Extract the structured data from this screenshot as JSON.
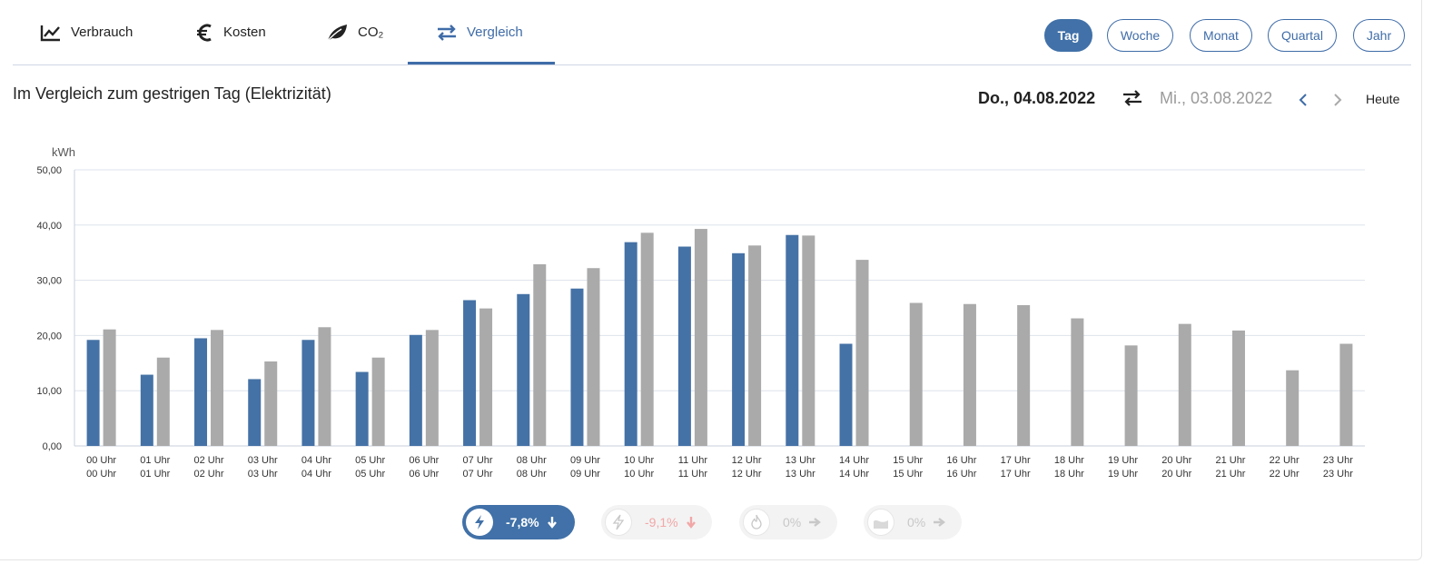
{
  "tabs": [
    {
      "label": "Verbrauch",
      "icon": "trend-chart-icon"
    },
    {
      "label": "Kosten",
      "icon": "euro-icon"
    },
    {
      "label": "CO₂",
      "icon": "leaf-icon"
    },
    {
      "label": "Vergleich",
      "icon": "swap-arrows-icon",
      "active": true
    }
  ],
  "periods": [
    {
      "label": "Tag",
      "active": true
    },
    {
      "label": "Woche"
    },
    {
      "label": "Monat"
    },
    {
      "label": "Quartal"
    },
    {
      "label": "Jahr"
    }
  ],
  "title": "Im Vergleich zum gestrigen Tag (Elektrizität)",
  "date_nav": {
    "current": "Do., 04.08.2022",
    "compare": "Mi., 03.08.2022",
    "today_label": "Heute"
  },
  "colors": {
    "accent": "#4171a8",
    "compare_bar": "#aaaaaa",
    "current_bar": "#4572a6",
    "negative": "#f2a7a7"
  },
  "chart_data": {
    "type": "bar",
    "ylabel": "kWh",
    "ylim": [
      0,
      50
    ],
    "yticks": [
      "0,00",
      "10,00",
      "20,00",
      "30,00",
      "40,00",
      "50,00"
    ],
    "grid": true,
    "categories_top": [
      "00 Uhr",
      "01 Uhr",
      "02 Uhr",
      "03 Uhr",
      "04 Uhr",
      "05 Uhr",
      "06 Uhr",
      "07 Uhr",
      "08 Uhr",
      "09 Uhr",
      "10 Uhr",
      "11 Uhr",
      "12 Uhr",
      "13 Uhr",
      "14 Uhr",
      "15 Uhr",
      "16 Uhr",
      "17 Uhr",
      "18 Uhr",
      "19 Uhr",
      "20 Uhr",
      "21 Uhr",
      "22 Uhr",
      "23 Uhr"
    ],
    "categories_bottom": [
      "00 Uhr",
      "01 Uhr",
      "02 Uhr",
      "03 Uhr",
      "04 Uhr",
      "05 Uhr",
      "06 Uhr",
      "07 Uhr",
      "08 Uhr",
      "09 Uhr",
      "10 Uhr",
      "11 Uhr",
      "12 Uhr",
      "13 Uhr",
      "14 Uhr",
      "15 Uhr",
      "16 Uhr",
      "17 Uhr",
      "18 Uhr",
      "19 Uhr",
      "20 Uhr",
      "21 Uhr",
      "22 Uhr",
      "23 Uhr"
    ],
    "series": [
      {
        "name": "Do., 04.08.2022",
        "color": "#4572a6",
        "values": [
          19.2,
          12.9,
          19.5,
          12.1,
          19.2,
          13.4,
          20.1,
          26.4,
          27.5,
          28.5,
          36.9,
          36.1,
          34.9,
          38.2,
          18.5,
          null,
          null,
          null,
          null,
          null,
          null,
          null,
          null,
          null
        ]
      },
      {
        "name": "Mi., 03.08.2022",
        "color": "#aaaaaa",
        "values": [
          21.1,
          16.0,
          21.0,
          15.3,
          21.5,
          16.0,
          21.0,
          24.9,
          32.9,
          32.2,
          38.6,
          39.3,
          36.3,
          38.1,
          33.7,
          25.9,
          25.7,
          25.5,
          23.1,
          18.2,
          22.1,
          20.9,
          13.7,
          18.5
        ]
      }
    ]
  },
  "summary": [
    {
      "value": "-7,8%",
      "icon": "lightning-icon",
      "active": true,
      "arrow": "down"
    },
    {
      "value": "-9,1%",
      "icon": "lightning-icon",
      "active": false,
      "arrow": "down"
    },
    {
      "value": "0%",
      "icon": "flame-icon",
      "active": false,
      "arrow": "right"
    },
    {
      "value": "0%",
      "icon": "water-icon",
      "active": false,
      "arrow": "right"
    }
  ]
}
